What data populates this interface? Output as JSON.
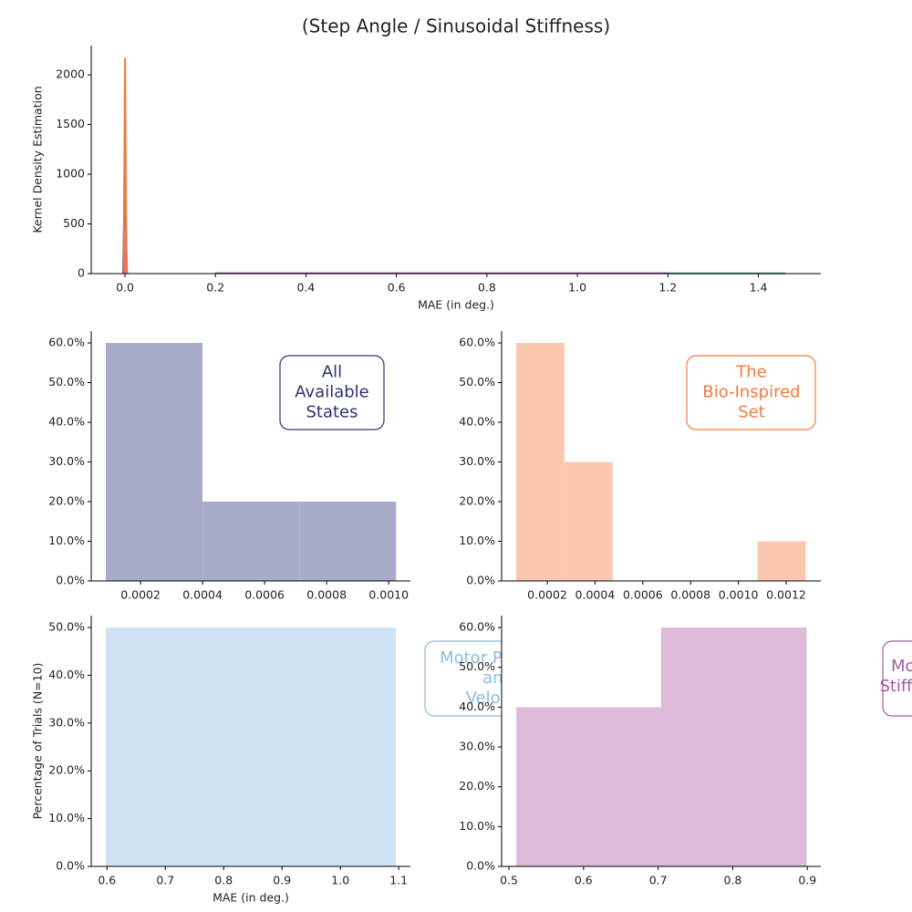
{
  "title": "(Step Angle / Sinusoidal Stiffness)",
  "chart_data": [
    {
      "type": "line",
      "xlabel": "MAE (in deg.)",
      "ylabel": "Kernel Density Estimation",
      "xlim": [
        -0.0746,
        1.538
      ],
      "ylim": [
        0,
        2294
      ],
      "xticks": [
        {
          "value": 0,
          "label": "0.0"
        },
        0.2,
        0.4,
        0.6,
        0.8,
        {
          "value": 1,
          "label": "1.0"
        },
        1.2,
        1.4
      ],
      "yticks": [
        0,
        500,
        1000,
        1500,
        2000
      ],
      "series": [
        {
          "color": "#2d3170",
          "x": [
            -0.004,
            0,
            0.004
          ],
          "values": [
            0,
            1080,
            0
          ]
        },
        {
          "color": "#ef7a3d",
          "x": [
            -0.003,
            0.0003,
            0.003
          ],
          "values": [
            0,
            2170,
            0
          ]
        },
        {
          "color": "#e8735b",
          "x": [
            -0.001,
            0.002,
            0.005
          ],
          "values": [
            0,
            380,
            0
          ]
        },
        {
          "color": "#9b59a1",
          "x": [
            0.2,
            1.2
          ],
          "values": [
            3,
            3
          ]
        },
        {
          "color": "#4aa0a0",
          "x": [
            1.2,
            1.46
          ],
          "values": [
            2,
            2
          ]
        }
      ]
    },
    {
      "type": "histogram",
      "annotation": [
        "All",
        "Available",
        "States"
      ],
      "annotation_color": "#2e3272",
      "color": "#a8acc9",
      "bins": [
        8.8e-05,
        0.0004,
        0.000712,
        0.001024
      ],
      "values": [
        60,
        20,
        20
      ],
      "xlim": [
        4.1e-05,
        0.00107
      ],
      "ylim": [
        0,
        63
      ],
      "xticks": [
        0.0002,
        0.0004,
        0.0006,
        0.0008,
        {
          "value": 0.001,
          "label": "0.0010"
        }
      ],
      "yticks": [
        {
          "value": 0,
          "label": "0.0%"
        },
        {
          "value": 10,
          "label": "10.0%"
        },
        {
          "value": 20,
          "label": "20.0%"
        },
        {
          "value": 30,
          "label": "30.0%"
        },
        {
          "value": 40,
          "label": "40.0%"
        },
        {
          "value": 50,
          "label": "50.0%"
        },
        {
          "value": 60,
          "label": "60.0%"
        }
      ]
    },
    {
      "type": "histogram",
      "annotation": [
        "The",
        "Bio-Inspired",
        "Set"
      ],
      "annotation_color": "#f07b3f",
      "color": "#fac8b0",
      "bins": [
        7e-05,
        0.000272,
        0.000474,
        0.000676,
        0.000878,
        0.00108,
        0.001282
      ],
      "values": [
        60,
        30,
        0,
        0,
        0,
        10
      ],
      "xlim": [
        9e-06,
        0.001345
      ],
      "ylim": [
        0,
        63
      ],
      "xticks": [
        0.0002,
        0.0004,
        0.0006,
        0.0008,
        {
          "value": 0.001,
          "label": "0.0010"
        },
        0.0012
      ],
      "yticks": [
        {
          "value": 0,
          "label": "0.0%"
        },
        {
          "value": 10,
          "label": "10.0%"
        },
        {
          "value": 20,
          "label": "20.0%"
        },
        {
          "value": 30,
          "label": "30.0%"
        },
        {
          "value": 40,
          "label": "40.0%"
        },
        {
          "value": 50,
          "label": "50.0%"
        },
        {
          "value": 60,
          "label": "60.0%"
        }
      ]
    },
    {
      "type": "histogram",
      "xlabel": "MAE (in deg.)",
      "ylabel": "Percentage of Trials (N=10)",
      "annotation": [
        "Motor Position",
        "and",
        "Velocity"
      ],
      "annotation_color": "#8fbbe0",
      "color": "#d0e3f4",
      "bins": [
        0.598,
        1.095
      ],
      "values": [
        50
      ],
      "xlim": [
        0.573,
        1.12
      ],
      "ylim": [
        0,
        52.5
      ],
      "xticks": [
        0.6,
        0.7,
        0.8,
        0.9,
        {
          "value": 1,
          "label": "1.0"
        },
        1.1
      ],
      "yticks": [
        {
          "value": 0,
          "label": "0.0%"
        },
        {
          "value": 10,
          "label": "10.0%"
        },
        {
          "value": 20,
          "label": "20.0%"
        },
        {
          "value": 30,
          "label": "30.0%"
        },
        {
          "value": 40,
          "label": "40.0%"
        },
        {
          "value": 50,
          "label": "50.0%"
        }
      ]
    },
    {
      "type": "histogram",
      "annotation": [
        "Motor",
        "Stiffness"
      ],
      "annotation_color": "#a25ca0",
      "color": "#dcbad8",
      "bins": [
        0.51,
        0.704,
        0.899
      ],
      "values": [
        40,
        60
      ],
      "xlim": [
        0.4902,
        0.918
      ],
      "ylim": [
        0,
        63
      ],
      "xticks": [
        0.5,
        0.6,
        0.7,
        0.8,
        0.9
      ],
      "yticks": [
        {
          "value": 0,
          "label": "0.0%"
        },
        {
          "value": 10,
          "label": "10.0%"
        },
        {
          "value": 20,
          "label": "20.0%"
        },
        {
          "value": 30,
          "label": "30.0%"
        },
        {
          "value": 40,
          "label": "40.0%"
        },
        {
          "value": 50,
          "label": "50.0%"
        },
        {
          "value": 60,
          "label": "60.0%"
        }
      ]
    }
  ]
}
